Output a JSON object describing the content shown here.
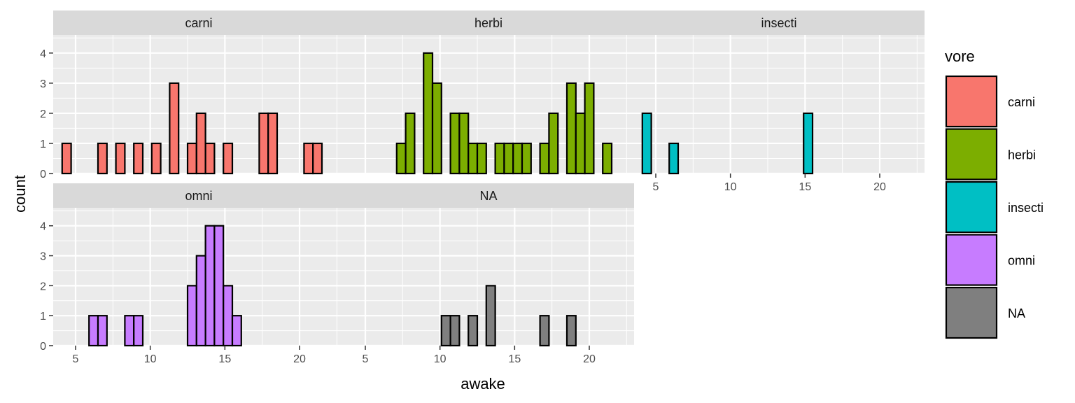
{
  "chart_data": {
    "type": "bar",
    "xlabel": "awake",
    "ylabel": "count",
    "xlim": [
      3.5,
      23.0
    ],
    "ylim": [
      0,
      4.6
    ],
    "x_ticks": [
      5,
      10,
      15,
      20
    ],
    "y_ticks": [
      0,
      1,
      2,
      3,
      4
    ],
    "x_tick_labels": [
      "5",
      "10",
      "15",
      "20"
    ],
    "y_tick_labels": [
      "0",
      "1",
      "2",
      "3",
      "4"
    ],
    "grid": true,
    "bin_start": 4.1,
    "bin_width": 0.6,
    "legend": {
      "title": "vore",
      "placement": "right",
      "items": [
        {
          "label": "carni",
          "color": "#F8766D"
        },
        {
          "label": "herbi",
          "color": "#7CAE00"
        },
        {
          "label": "insecti",
          "color": "#00BFC4"
        },
        {
          "label": "omni",
          "color": "#C77CFF"
        },
        {
          "label": "NA",
          "color": "#7F7F7F"
        }
      ]
    },
    "panels": [
      {
        "label": "carni",
        "color": "#F8766D",
        "counts": [
          1,
          0,
          0,
          0,
          1,
          0,
          1,
          0,
          1,
          0,
          1,
          0,
          3,
          0,
          1,
          2,
          1,
          0,
          1,
          0,
          0,
          0,
          2,
          2,
          0,
          0,
          0,
          1,
          1,
          0,
          0
        ]
      },
      {
        "label": "herbi",
        "color": "#7CAE00",
        "counts": [
          0,
          0,
          0,
          0,
          0,
          1,
          2,
          0,
          4,
          3,
          0,
          2,
          2,
          1,
          1,
          0,
          1,
          1,
          1,
          1,
          0,
          1,
          2,
          0,
          3,
          2,
          3,
          0,
          1,
          0,
          0
        ]
      },
      {
        "label": "insecti",
        "color": "#00BFC4",
        "counts": [
          2,
          0,
          0,
          1,
          0,
          0,
          0,
          0,
          0,
          0,
          0,
          0,
          0,
          0,
          0,
          0,
          0,
          0,
          2,
          0,
          0,
          0,
          0,
          0,
          0,
          0,
          0,
          0,
          0,
          0,
          0
        ]
      },
      {
        "label": "omni",
        "color": "#C77CFF",
        "counts": [
          0,
          0,
          0,
          1,
          1,
          0,
          0,
          1,
          1,
          0,
          0,
          0,
          0,
          0,
          2,
          3,
          4,
          4,
          2,
          1,
          0,
          0,
          0,
          0,
          0,
          0,
          0,
          0,
          0,
          0,
          0
        ]
      },
      {
        "label": "NA",
        "color": "#7F7F7F",
        "counts": [
          0,
          0,
          0,
          0,
          0,
          0,
          0,
          0,
          0,
          0,
          1,
          1,
          0,
          1,
          0,
          2,
          0,
          0,
          0,
          0,
          0,
          1,
          0,
          0,
          1,
          0,
          0,
          0,
          0,
          0,
          0
        ]
      }
    ]
  }
}
